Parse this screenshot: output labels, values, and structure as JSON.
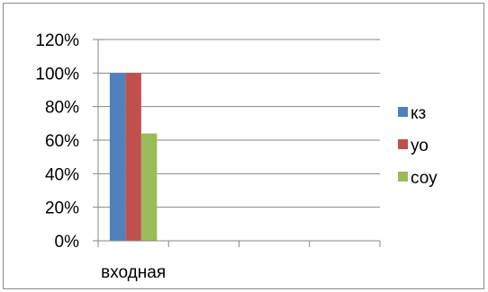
{
  "chart_data": {
    "type": "bar",
    "categories": [
      "входная",
      "",
      "",
      ""
    ],
    "series": [
      {
        "name": "кз",
        "color": "#4f81bd",
        "values": [
          1.0,
          null,
          null,
          null
        ]
      },
      {
        "name": "уо",
        "color": "#c0504d",
        "values": [
          1.0,
          null,
          null,
          null
        ]
      },
      {
        "name": "соу",
        "color": "#9bbb59",
        "values": [
          0.64,
          null,
          null,
          null
        ]
      }
    ],
    "y_ticks": [
      "0%",
      "20%",
      "40%",
      "60%",
      "80%",
      "100%",
      "120%"
    ],
    "ylim": [
      0,
      1.2
    ],
    "grid": true,
    "legend_position": "right",
    "title": "",
    "xlabel": "",
    "ylabel": ""
  }
}
